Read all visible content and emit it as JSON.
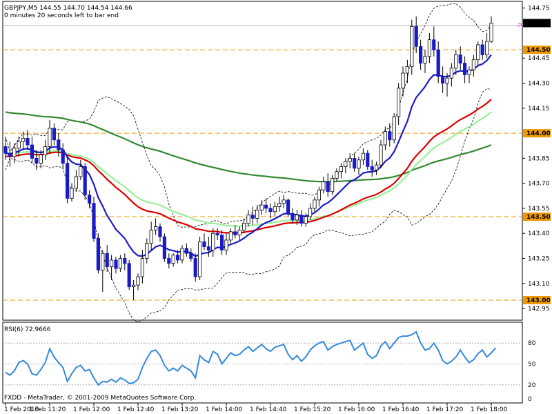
{
  "header": {
    "line1": "GBPJPY,M5  144.55 144.70 144.54 144.66",
    "line2": "0 minutes 20 seconds left to bar end"
  },
  "rsi": {
    "label": "RSI(6) 72.9666"
  },
  "footer": {
    "copyright": "FXDD - MetaTrader, © 2001-2009 MetaQuotes Software Corp."
  },
  "colors": {
    "bull": "#ffffff",
    "bear": "#1a1ac8",
    "wick": "#000000",
    "ma_blue": "#1a1acc",
    "ma_red": "#dd0000",
    "ma_lightgreen": "#99ee99",
    "ma_darkgreen": "#338833",
    "bands": "#000000",
    "levels": "#ee9900",
    "rsi": "#3388dd",
    "price_marker": "#000000"
  },
  "chart_data": {
    "type": "candlestick",
    "symbol": "GBPJPY",
    "timeframe": "M5",
    "ylim": [
      142.88,
      144.79
    ],
    "y_ticks": [
      "144.75",
      "144.45",
      "144.30",
      "144.15",
      "143.85",
      "143.70",
      "143.55",
      "143.40",
      "143.25",
      "143.10",
      "142.95"
    ],
    "price_labels": [
      {
        "value": 144.66,
        "text": "144.66",
        "style": "current"
      },
      {
        "value": 144.5,
        "text": "144.50",
        "style": "level"
      },
      {
        "value": 144.0,
        "text": "144.00",
        "style": "level"
      },
      {
        "value": 143.5,
        "text": "143.50",
        "style": "level"
      },
      {
        "value": 143.0,
        "text": "143.00",
        "style": "level"
      }
    ],
    "levels": [
      144.5,
      144.0,
      143.5,
      143.0
    ],
    "x_labels": [
      {
        "i": 0,
        "text": "1 Feb 2010"
      },
      {
        "i": 10,
        "text": "1 Feb 11:20"
      },
      {
        "i": 20,
        "text": "1 Feb 12:00"
      },
      {
        "i": 30,
        "text": "1 Feb 12:40"
      },
      {
        "i": 40,
        "text": "1 Feb 13:20"
      },
      {
        "i": 50,
        "text": "1 Feb 14:00"
      },
      {
        "i": 60,
        "text": "1 Feb 14:40"
      },
      {
        "i": 70,
        "text": "1 Feb 15:20"
      },
      {
        "i": 80,
        "text": "1 Feb 16:00"
      },
      {
        "i": 90,
        "text": "1 Feb 16:40"
      },
      {
        "i": 100,
        "text": "1 Feb 17:20"
      },
      {
        "i": 110,
        "text": "1 Feb 18:00"
      }
    ],
    "candles": [
      [
        143.92,
        143.97,
        143.84,
        143.88
      ],
      [
        143.88,
        143.95,
        143.8,
        143.86
      ],
      [
        143.86,
        143.94,
        143.82,
        143.91
      ],
      [
        143.91,
        143.98,
        143.86,
        143.95
      ],
      [
        143.95,
        144.01,
        143.9,
        143.97
      ],
      [
        143.97,
        144.02,
        143.9,
        143.93
      ],
      [
        143.93,
        143.98,
        143.82,
        143.85
      ],
      [
        143.85,
        143.9,
        143.78,
        143.82
      ],
      [
        143.82,
        143.9,
        143.79,
        143.87
      ],
      [
        143.87,
        143.96,
        143.84,
        143.92
      ],
      [
        143.92,
        144.08,
        143.88,
        144.03
      ],
      [
        144.03,
        144.06,
        143.93,
        143.96
      ],
      [
        143.96,
        144.0,
        143.86,
        143.9
      ],
      [
        143.9,
        143.94,
        143.79,
        143.82
      ],
      [
        143.82,
        143.86,
        143.58,
        143.61
      ],
      [
        143.61,
        143.7,
        143.59,
        143.67
      ],
      [
        143.67,
        143.78,
        143.65,
        143.74
      ],
      [
        143.74,
        143.84,
        143.72,
        143.8
      ],
      [
        143.8,
        143.82,
        143.6,
        143.63
      ],
      [
        143.63,
        143.66,
        143.55,
        143.58
      ],
      [
        143.58,
        143.62,
        143.35,
        143.37
      ],
      [
        143.37,
        143.4,
        143.16,
        143.18
      ],
      [
        143.18,
        143.3,
        143.05,
        143.28
      ],
      [
        143.28,
        143.33,
        143.17,
        143.2
      ],
      [
        143.2,
        143.27,
        143.12,
        143.24
      ],
      [
        143.24,
        143.26,
        143.16,
        143.19
      ],
      [
        143.19,
        143.27,
        143.17,
        143.25
      ],
      [
        143.25,
        143.28,
        143.18,
        143.22
      ],
      [
        143.22,
        143.24,
        143.06,
        143.08
      ],
      [
        143.08,
        143.12,
        143.0,
        143.09
      ],
      [
        143.09,
        143.16,
        143.06,
        143.14
      ],
      [
        143.14,
        143.3,
        143.1,
        143.25
      ],
      [
        143.25,
        143.37,
        143.22,
        143.34
      ],
      [
        143.34,
        143.47,
        143.3,
        143.42
      ],
      [
        143.42,
        143.49,
        143.39,
        143.44
      ],
      [
        143.44,
        143.46,
        143.35,
        143.38
      ],
      [
        143.38,
        143.4,
        143.23,
        143.25
      ],
      [
        143.25,
        143.28,
        143.19,
        143.22
      ],
      [
        143.22,
        143.28,
        143.2,
        143.27
      ],
      [
        143.27,
        143.3,
        143.22,
        143.24
      ],
      [
        143.24,
        143.33,
        143.22,
        143.31
      ],
      [
        143.31,
        143.34,
        143.26,
        143.28
      ],
      [
        143.28,
        143.31,
        143.23,
        143.25
      ],
      [
        143.25,
        143.28,
        143.11,
        143.14
      ],
      [
        143.14,
        143.38,
        143.12,
        143.35
      ],
      [
        143.35,
        143.4,
        143.3,
        143.32
      ],
      [
        143.32,
        143.38,
        143.26,
        143.3
      ],
      [
        143.3,
        143.43,
        143.26,
        143.4
      ],
      [
        143.4,
        143.43,
        143.36,
        143.39
      ],
      [
        143.39,
        143.42,
        143.27,
        143.3
      ],
      [
        143.3,
        143.4,
        143.27,
        143.36
      ],
      [
        143.36,
        143.43,
        143.34,
        143.41
      ],
      [
        143.41,
        143.45,
        143.37,
        143.39
      ],
      [
        143.39,
        143.44,
        143.36,
        143.42
      ],
      [
        143.42,
        143.49,
        143.4,
        143.46
      ],
      [
        143.46,
        143.54,
        143.44,
        143.51
      ],
      [
        143.51,
        143.56,
        143.45,
        143.49
      ],
      [
        143.49,
        143.57,
        143.46,
        143.54
      ],
      [
        143.54,
        143.6,
        143.51,
        143.57
      ],
      [
        143.57,
        143.61,
        143.52,
        143.55
      ],
      [
        143.55,
        143.58,
        143.49,
        143.53
      ],
      [
        143.53,
        143.59,
        143.5,
        143.56
      ],
      [
        143.56,
        143.62,
        143.53,
        143.58
      ],
      [
        143.58,
        143.63,
        143.55,
        143.6
      ],
      [
        143.6,
        143.61,
        143.5,
        143.52
      ],
      [
        143.52,
        143.55,
        143.46,
        143.48
      ],
      [
        143.48,
        143.54,
        143.45,
        143.51
      ],
      [
        143.51,
        143.54,
        143.44,
        143.46
      ],
      [
        143.46,
        143.52,
        143.44,
        143.5
      ],
      [
        143.5,
        143.58,
        143.48,
        143.55
      ],
      [
        143.55,
        143.62,
        143.53,
        143.6
      ],
      [
        143.6,
        143.68,
        143.56,
        143.66
      ],
      [
        143.66,
        143.74,
        143.64,
        143.71
      ],
      [
        143.71,
        143.76,
        143.62,
        143.65
      ],
      [
        143.65,
        143.75,
        143.63,
        143.73
      ],
      [
        143.73,
        143.79,
        143.71,
        143.77
      ],
      [
        143.77,
        143.82,
        143.73,
        143.8
      ],
      [
        143.8,
        143.85,
        143.76,
        143.83
      ],
      [
        143.83,
        143.88,
        143.79,
        143.85
      ],
      [
        143.85,
        143.88,
        143.77,
        143.79
      ],
      [
        143.79,
        143.86,
        143.75,
        143.84
      ],
      [
        143.84,
        143.91,
        143.81,
        143.88
      ],
      [
        143.88,
        143.9,
        143.78,
        143.8
      ],
      [
        143.8,
        143.84,
        143.74,
        143.78
      ],
      [
        143.78,
        143.83,
        143.75,
        143.81
      ],
      [
        143.81,
        143.96,
        143.79,
        143.93
      ],
      [
        143.93,
        144.04,
        143.9,
        144.01
      ],
      [
        144.01,
        144.06,
        143.92,
        143.96
      ],
      [
        143.96,
        144.12,
        143.94,
        144.1
      ],
      [
        144.1,
        144.3,
        144.05,
        144.27
      ],
      [
        144.27,
        144.4,
        144.22,
        144.36
      ],
      [
        144.36,
        144.44,
        144.3,
        144.4
      ],
      [
        144.4,
        144.68,
        144.35,
        144.64
      ],
      [
        144.64,
        144.7,
        144.48,
        144.52
      ],
      [
        144.52,
        144.56,
        144.38,
        144.42
      ],
      [
        144.42,
        144.5,
        144.36,
        144.46
      ],
      [
        144.46,
        144.6,
        144.42,
        144.56
      ],
      [
        144.56,
        144.64,
        144.46,
        144.5
      ],
      [
        144.5,
        144.55,
        144.3,
        144.34
      ],
      [
        144.34,
        144.4,
        144.24,
        144.3
      ],
      [
        144.3,
        144.36,
        144.22,
        144.33
      ],
      [
        144.33,
        144.42,
        144.28,
        144.39
      ],
      [
        144.39,
        144.5,
        144.35,
        144.47
      ],
      [
        144.47,
        144.52,
        144.38,
        144.42
      ],
      [
        144.42,
        144.46,
        144.3,
        144.35
      ],
      [
        144.35,
        144.4,
        144.3,
        144.38
      ],
      [
        144.38,
        144.47,
        144.34,
        144.44
      ],
      [
        144.44,
        144.55,
        144.4,
        144.53
      ],
      [
        144.53,
        144.56,
        144.44,
        144.47
      ],
      [
        144.47,
        144.6,
        144.45,
        144.55
      ],
      [
        144.55,
        144.7,
        144.54,
        144.66
      ]
    ],
    "rsi_ticks": [
      "80",
      "50",
      "20",
      "0"
    ],
    "rsi_levels": [
      80,
      50,
      20
    ],
    "rsi_values": [
      38,
      34,
      40,
      52,
      55,
      50,
      36,
      34,
      42,
      52,
      72,
      60,
      52,
      45,
      25,
      36,
      45,
      48,
      40,
      42,
      30,
      20,
      25,
      24,
      28,
      24,
      30,
      27,
      22,
      23,
      28,
      45,
      58,
      68,
      70,
      62,
      48,
      40,
      44,
      40,
      48,
      44,
      40,
      30,
      62,
      56,
      52,
      68,
      64,
      50,
      58,
      66,
      62,
      64,
      70,
      75,
      68,
      73,
      78,
      72,
      68,
      74,
      76,
      78,
      64,
      56,
      62,
      54,
      60,
      70,
      76,
      80,
      82,
      70,
      75,
      78,
      80,
      82,
      84,
      70,
      75,
      80,
      64,
      58,
      62,
      76,
      82,
      72,
      80,
      88,
      90,
      90,
      92,
      96,
      80,
      70,
      72,
      80,
      70,
      55,
      50,
      54,
      60,
      70,
      60,
      52,
      56,
      65,
      70,
      60,
      66,
      72.97
    ]
  }
}
